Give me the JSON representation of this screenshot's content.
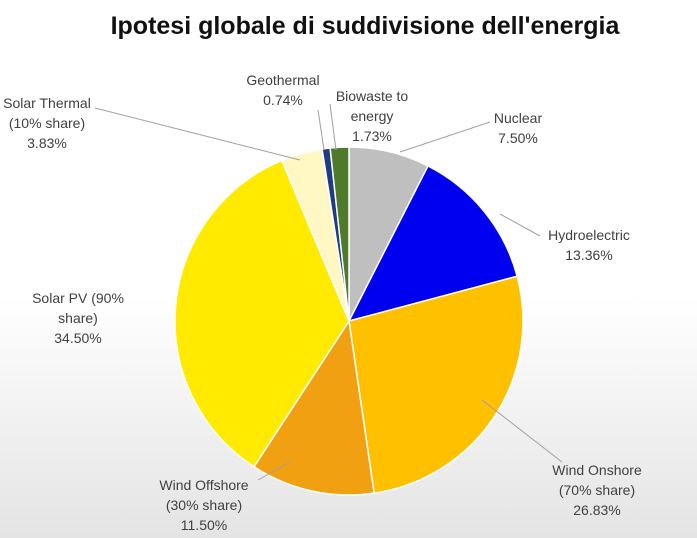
{
  "chart_data": {
    "type": "pie",
    "title": "Ipotesi globale di suddivisione dell'energia",
    "categories": [
      "Nuclear",
      "Hydroelectric",
      "Wind Onshore (70% share)",
      "Wind Offshore (30% share)",
      "Solar PV (90% share)",
      "Solar Thermal (10% share)",
      "Geothermal",
      "Biowaste to energy"
    ],
    "values": [
      7.5,
      13.36,
      26.83,
      11.5,
      34.5,
      3.83,
      0.74,
      1.73
    ],
    "value_labels": [
      "7.50%",
      "13.36%",
      "26.83%",
      "11.50%",
      "34.50%",
      "3.83%",
      "0.74%",
      "1.73%"
    ],
    "colors": [
      "#bfbfbf",
      "#0000f0",
      "#ffc000",
      "#f0a010",
      "#ffea00",
      "#fff7c4",
      "#1f3b82",
      "#4f7a2c"
    ]
  }
}
